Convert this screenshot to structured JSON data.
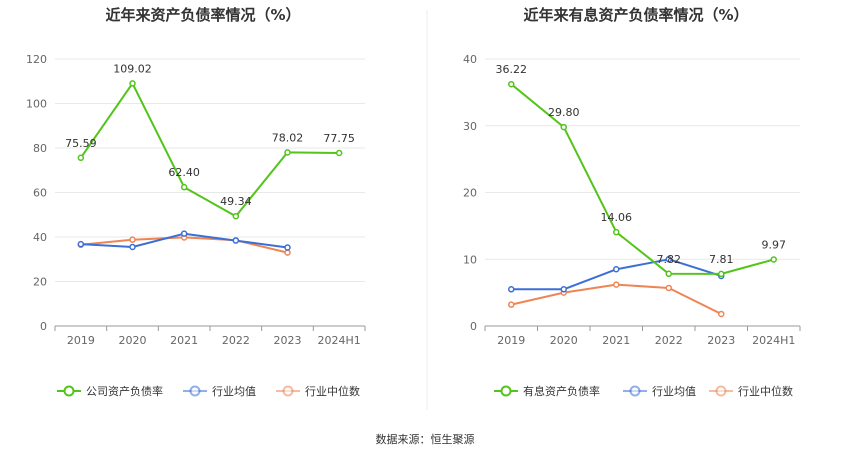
{
  "source_label": "数据来源：恒生聚源",
  "chart_data": [
    {
      "type": "line",
      "title": "近年来资产负债率情况（%）",
      "categories": [
        "2019",
        "2020",
        "2021",
        "2022",
        "2023",
        "2024H1"
      ],
      "ylim": [
        0,
        120
      ],
      "yticks": [
        0,
        20,
        40,
        60,
        80,
        100,
        120
      ],
      "grid": true,
      "legend_position": "bottom",
      "series": [
        {
          "name": "公司资产负债率",
          "color": "#52c41a",
          "values": [
            75.59,
            109.02,
            62.4,
            49.34,
            78.02,
            77.75
          ],
          "labels": [
            "75.59",
            "109.02",
            "62.40",
            "49.34",
            "78.02",
            "77.75"
          ]
        },
        {
          "name": "行业均值",
          "color": "#3b6fd6",
          "values": [
            36.8,
            35.5,
            41.5,
            38.4,
            35.3,
            null
          ]
        },
        {
          "name": "行业中位数",
          "color": "#ef8454",
          "values": [
            36.5,
            38.8,
            39.8,
            38.5,
            33.0,
            null
          ]
        }
      ]
    },
    {
      "type": "line",
      "title": "近年来有息资产负债率情况（%）",
      "categories": [
        "2019",
        "2020",
        "2021",
        "2022",
        "2023",
        "2024H1"
      ],
      "ylim": [
        0,
        40
      ],
      "yticks": [
        0,
        10,
        20,
        30,
        40
      ],
      "grid": true,
      "legend_position": "bottom",
      "series": [
        {
          "name": "有息资产负债率",
          "color": "#52c41a",
          "values": [
            36.22,
            29.8,
            14.06,
            7.82,
            7.81,
            9.97
          ],
          "labels": [
            "36.22",
            "29.80",
            "14.06",
            "7.82",
            "7.81",
            "9.97"
          ]
        },
        {
          "name": "行业均值",
          "color": "#3b6fd6",
          "values": [
            5.5,
            5.5,
            8.5,
            10.0,
            7.5,
            null
          ]
        },
        {
          "name": "行业中位数",
          "color": "#ef8454",
          "values": [
            3.2,
            5.0,
            6.2,
            5.7,
            1.8,
            null
          ]
        }
      ]
    }
  ]
}
